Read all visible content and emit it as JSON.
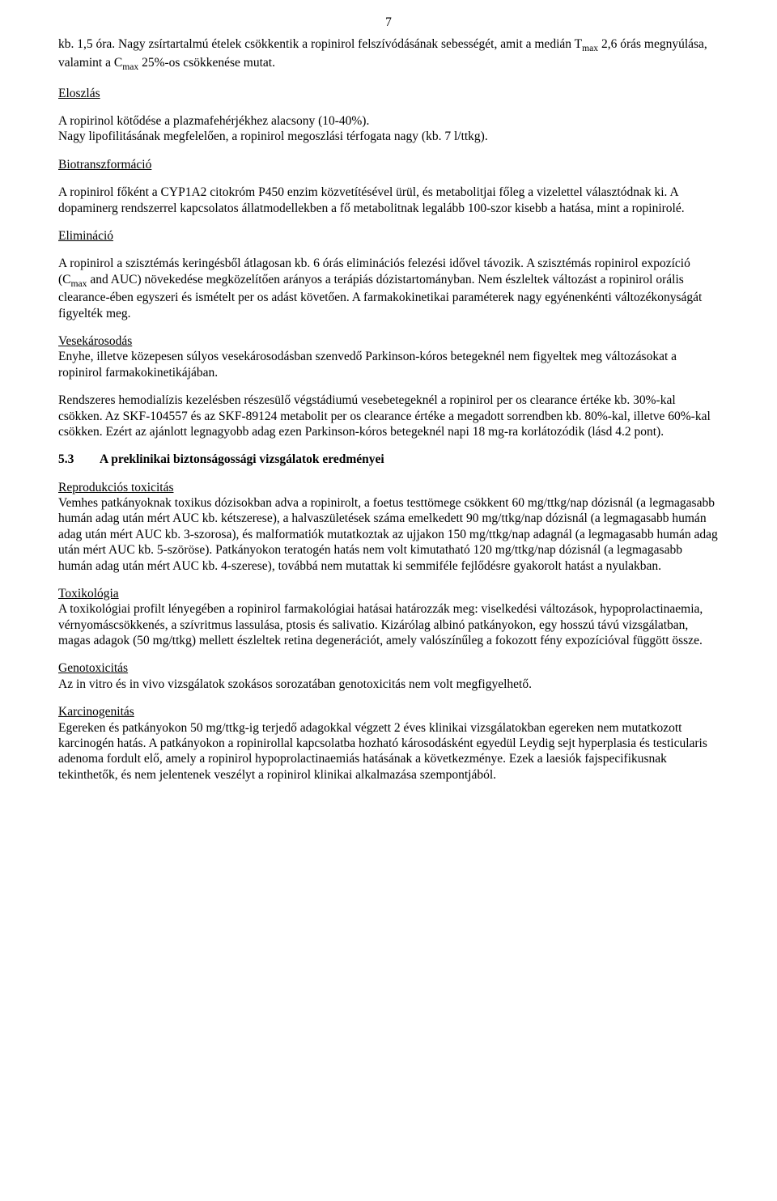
{
  "pageNumber": "7",
  "para1": "kb. 1,5 óra. Nagy zsírtartalmú ételek csökkentik a ropinirol felszívódásának sebességét, amit a medián Tmax 2,6 órás megnyúlása, valamint a Cmax 25%-os csökkenése mutat.",
  "h_eloszlas": "Eloszlás",
  "para2": "A ropirinol kötődése a plazmafehérjékhez alacsony (10-40%). Nagy lipofilitásának megfelelően, a ropinirol megoszlási térfogata nagy (kb. 7 l/ttkg).",
  "h_biotransz": "Biotranszformáció",
  "para3": "A ropinirol főként a CYP1A2 citokróm P450 enzim közvetítésével ürül, és metabolitjai főleg a vizelettel választódnak ki. A dopaminerg rendszerrel kapcsolatos állatmodellekben a fő metabolitnak legalább 100-szor kisebb a hatása, mint a ropinirolé.",
  "h_eliminacio": "Elimináció",
  "para4": "A ropinirol a szisztémás keringésből átlagosan kb. 6 órás eliminációs felezési idővel távozik. A szisztémás ropinirol expozíció (Cmax and AUC) növekedése megközelítően arányos a terápiás dózistartományban. Nem észleltek változást a ropinirol orális clearance-ében egyszeri és ismételt per os adást követően. A farmakokinetikai paraméterek nagy egyénenkénti változékonyságát figyelték meg.",
  "h_vesekarosodas": "Vesekárosodás",
  "para5": "Enyhe, illetve közepesen súlyos vesekárosodásban szenvedő Parkinson-kóros betegeknél nem figyeltek meg változásokat a ropinirol farmakokinetikájában.",
  "para6": "Rendszeres hemodialízis kezelésben részesülő végstádiumú vesebetegeknél a ropinirol per os clearance értéke kb. 30%-kal csökken. Az SKF-104557 és az SKF-89124 metabolit per os clearance értéke a megadott sorrendben kb. 80%-kal, illetve 60%-kal csökken. Ezért az ajánlott legnagyobb adag ezen Parkinson-kóros betegeknél napi 18 mg-ra korlátozódik (lásd 4.2 pont).",
  "section53_num": "5.3",
  "section53_title": "A preklinikai biztonságossági vizsgálatok eredményei",
  "h_reprod": "Reprodukciós toxicitás",
  "para7": "Vemhes patkányoknak toxikus dózisokban adva a ropinirolt, a foetus testtömege csökkent 60 mg/ttkg/nap dózisnál (a legmagasabb humán adag után mért AUC kb. kétszerese), a halvaszületések száma emelkedett 90 mg/ttkg/nap dózisnál (a legmagasabb humán adag után mért AUC kb. 3-szorosa), és malformatiók mutatkoztak az ujjakon 150 mg/ttkg/nap adagnál (a legmagasabb humán adag után mért AUC kb. 5-szöröse). Patkányokon teratogén hatás nem volt kimutatható 120 mg/ttkg/nap dózisnál (a legmagasabb humán adag után mért AUC kb. 4-szerese), továbbá nem mutattak ki semmiféle fejlődésre gyakorolt hatást a nyulakban.",
  "h_toxikologia": "Toxikológia",
  "para8": "A toxikológiai profilt lényegében a ropinirol farmakológiai hatásai határozzák meg: viselkedési változások, hypoprolactinaemia, vérnyomáscsökkenés, a szívritmus lassulása, ptosis és salivatio. Kizárólag albinó patkányokon, egy hosszú távú vizsgálatban, magas adagok (50 mg/ttkg) mellett észleltek retina degenerációt, amely valószínűleg a fokozott fény expozícióval függött össze.",
  "h_genotox": "Genotoxicitás",
  "para9": "Az in vitro és in vivo vizsgálatok szokásos sorozatában genotoxicitás nem volt megfigyelhető.",
  "h_karcinogen": "Karcinogenitás",
  "para10": "Egereken és patkányokon 50 mg/ttkg-ig terjedő adagokkal végzett 2 éves klinikai vizsgálatokban egereken nem mutatkozott karcinogén hatás. A patkányokon a ropinirollal kapcsolatba hozható károsodásként egyedül Leydig sejt hyperplasia és testicularis adenoma fordult elő, amely a ropinirol hypoprolactinaemiás hatásának a következménye. Ezek a laesiók fajspecifikusnak tekinthetők, és nem jelentenek veszélyt a ropinirol klinikai alkalmazása szempontjából."
}
